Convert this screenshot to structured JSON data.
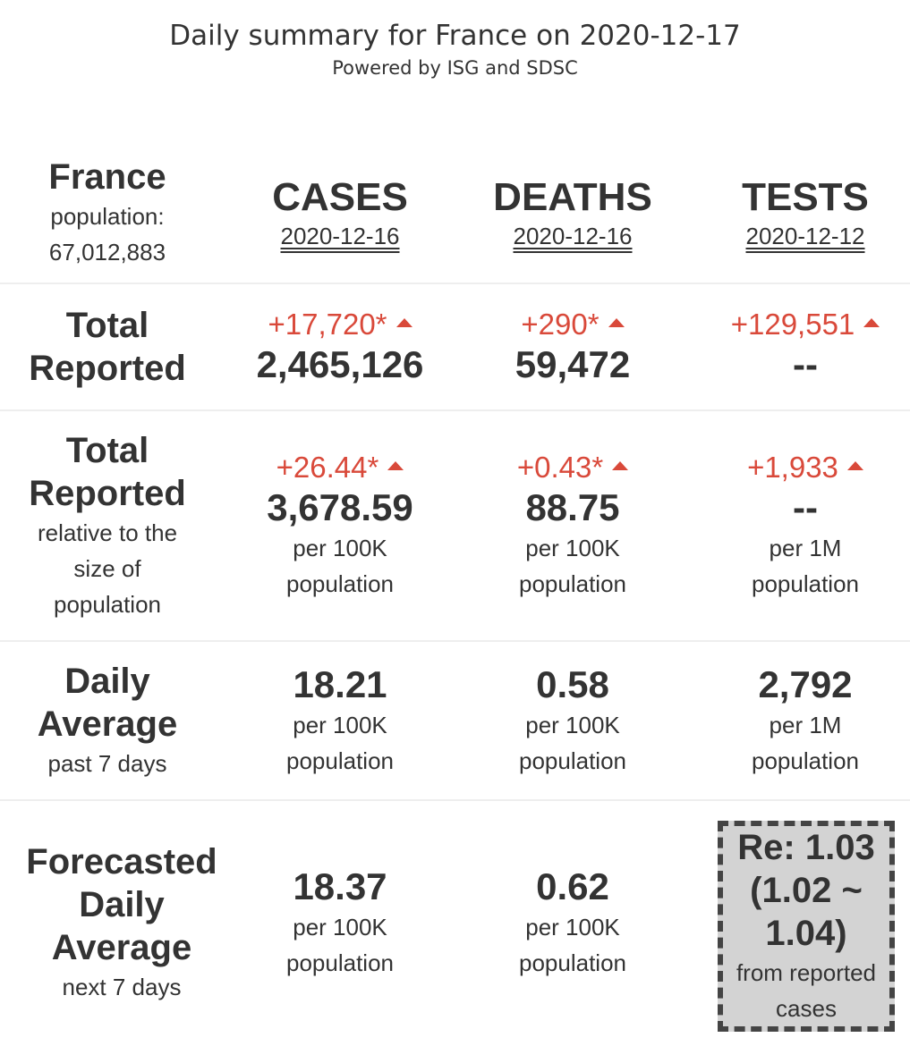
{
  "header": {
    "title": "Daily summary for France on 2020-12-17",
    "subtitle": "Powered by ISG and SDSC"
  },
  "country": {
    "name": "France",
    "population_label": "population:",
    "population": "67,012,883"
  },
  "columns": [
    {
      "name": "CASES",
      "date": "2020-12-16"
    },
    {
      "name": "DEATHS",
      "date": "2020-12-16"
    },
    {
      "name": "TESTS",
      "date": "2020-12-12"
    }
  ],
  "rows": {
    "total": {
      "label_line1": "Total",
      "label_line2": "Reported",
      "cases": {
        "delta": "+17,720*",
        "value": "2,465,126"
      },
      "deaths": {
        "delta": "+290*",
        "value": "59,472"
      },
      "tests": {
        "delta": "+129,551",
        "value": "--"
      }
    },
    "relative": {
      "label_line1": "Total",
      "label_line2": "Reported",
      "sub_line1": "relative to the",
      "sub_line2": "size of",
      "sub_line3": "population",
      "cases": {
        "delta": "+26.44*",
        "value": "3,678.59",
        "unit1": "per 100K",
        "unit2": "population"
      },
      "deaths": {
        "delta": "+0.43*",
        "value": "88.75",
        "unit1": "per 100K",
        "unit2": "population"
      },
      "tests": {
        "delta": "+1,933",
        "value": "--",
        "unit1": "per 1M",
        "unit2": "population"
      }
    },
    "daily": {
      "label_line1": "Daily",
      "label_line2": "Average",
      "sub_line1": "past 7 days",
      "cases": {
        "value": "18.21",
        "unit1": "per 100K",
        "unit2": "population"
      },
      "deaths": {
        "value": "0.58",
        "unit1": "per 100K",
        "unit2": "population"
      },
      "tests": {
        "value": "2,792",
        "unit1": "per 1M",
        "unit2": "population"
      }
    },
    "forecast": {
      "label_line1": "Forecasted",
      "label_line2": "Daily",
      "label_line3": "Average",
      "sub_line1": "next 7 days",
      "cases": {
        "value": "18.37",
        "unit1": "per 100K",
        "unit2": "population"
      },
      "deaths": {
        "value": "0.62",
        "unit1": "per 100K",
        "unit2": "population"
      },
      "re": {
        "line1": "Re: 1.03",
        "line2": "(1.02 ~",
        "line3": "1.04)",
        "sub1": "from reported",
        "sub2": "cases"
      }
    }
  },
  "colors": {
    "text": "#333333",
    "increase": "#d9493a",
    "re_box_bg": "#d3d3d3",
    "re_box_border": "#444444"
  },
  "icons": {
    "increase": "triangle-up-icon"
  }
}
